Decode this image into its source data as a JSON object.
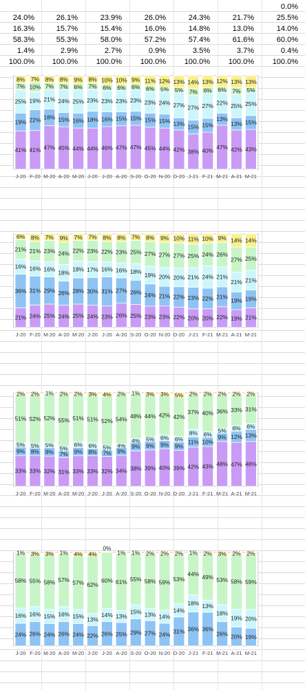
{
  "sheet_table": {
    "rows": [
      [
        "",
        "",
        "",
        "",
        "",
        "",
        "",
        "0.0%"
      ],
      [
        "24.0%",
        "26.1%",
        "23.9%",
        "26.0%",
        "24.3%",
        "21.7%",
        "25.5%"
      ],
      [
        "16.3%",
        "15.7%",
        "15.4%",
        "16.0%",
        "14.8%",
        "13.0%",
        "14.0%"
      ],
      [
        "58.3%",
        "55.3%",
        "58.0%",
        "57.2%",
        "57.4%",
        "61.6%",
        "60.0%"
      ],
      [
        "1.4%",
        "2.9%",
        "2.7%",
        "0.9%",
        "3.5%",
        "3.7%",
        "0.4%"
      ],
      [
        "100.0%",
        "100.0%",
        "100.0%",
        "100.0%",
        "100.0%",
        "100.0%",
        "100.0%"
      ]
    ]
  },
  "colors": {
    "purple": "#c99bf5",
    "blue": "#8ec3f4",
    "cyan": "#cdf6fc",
    "green": "#c8f5c8",
    "yellow": "#faf08c",
    "grid": "#d9d9d9",
    "frame": "#c8c8c8"
  },
  "chart_data": [
    {
      "type": "bar",
      "stacked": "100%",
      "categories": [
        "J-20",
        "F-20",
        "M-20",
        "A-20",
        "M-20",
        "J-20",
        "J-20",
        "A-20",
        "S-20",
        "O-20",
        "N-20",
        "D-20",
        "J-21",
        "F-21",
        "M-21",
        "A-21",
        "M-21"
      ],
      "series": [
        {
          "color": "purple",
          "values": [
            41,
            41,
            47,
            45,
            44,
            44,
            46,
            47,
            47,
            45,
            44,
            42,
            38,
            40,
            47,
            42,
            43
          ]
        },
        {
          "color": "blue",
          "values": [
            19,
            22,
            18,
            15,
            16,
            18,
            16,
            15,
            15,
            15,
            15,
            13,
            15,
            15,
            13,
            13,
            15
          ]
        },
        {
          "color": "cyan",
          "values": [
            25,
            19,
            21,
            24,
            25,
            23,
            23,
            23,
            23,
            23,
            24,
            27,
            27,
            27,
            22,
            25,
            25
          ]
        },
        {
          "color": "green",
          "values": [
            7,
            10,
            7,
            7,
            6,
            7,
            6,
            6,
            6,
            6,
            5,
            5,
            7,
            6,
            6,
            7,
            5
          ]
        },
        {
          "color": "yellow",
          "values": [
            8,
            7,
            8,
            8,
            9,
            8,
            10,
            10,
            9,
            11,
            12,
            13,
            14,
            13,
            12,
            13,
            13
          ]
        }
      ]
    },
    {
      "type": "bar",
      "stacked": "100%",
      "categories": [
        "J-20",
        "F-20",
        "M-20",
        "A-20",
        "M-20",
        "J-20",
        "J-20",
        "A-20",
        "S-20",
        "O-20",
        "N-20",
        "D-20",
        "J-21",
        "F-21",
        "M-21",
        "A-21",
        "M-21"
      ],
      "series": [
        {
          "color": "purple",
          "values": [
            21,
            24,
            25,
            24,
            25,
            24,
            23,
            26,
            25,
            23,
            23,
            22,
            20,
            20,
            22,
            19,
            21
          ]
        },
        {
          "color": "blue",
          "values": [
            36,
            31,
            29,
            26,
            28,
            30,
            31,
            27,
            26,
            24,
            21,
            22,
            23,
            22,
            21,
            19,
            19
          ]
        },
        {
          "color": "cyan",
          "values": [
            16,
            16,
            16,
            18,
            18,
            17,
            16,
            16,
            18,
            19,
            20,
            20,
            21,
            24,
            21,
            21,
            21
          ]
        },
        {
          "color": "green",
          "values": [
            21,
            21,
            23,
            24,
            22,
            23,
            22,
            23,
            25,
            27,
            27,
            27,
            25,
            24,
            26,
            27,
            25
          ]
        },
        {
          "color": "yellow",
          "values": [
            6,
            8,
            7,
            9,
            7,
            7,
            8,
            8,
            7,
            8,
            9,
            10,
            11,
            10,
            9,
            14,
            14
          ]
        }
      ]
    },
    {
      "type": "bar",
      "stacked": "100%",
      "categories": [
        "J-20",
        "F-20",
        "M-20",
        "A-20",
        "M-20",
        "J-20",
        "J-20",
        "A-20",
        "S-20",
        "O-20",
        "N-20",
        "D-20",
        "J-21",
        "F-21",
        "M-21",
        "A-21",
        "M-21"
      ],
      "series": [
        {
          "color": "purple",
          "values": [
            33,
            33,
            32,
            31,
            33,
            33,
            32,
            34,
            38,
            39,
            40,
            39,
            42,
            43,
            48,
            47,
            48
          ]
        },
        {
          "color": "blue",
          "values": [
            9,
            8,
            9,
            7,
            9,
            8,
            7,
            9,
            9,
            9,
            9,
            9,
            11,
            10,
            9,
            12,
            13
          ]
        },
        {
          "color": "cyan",
          "values": [
            5,
            5,
            5,
            5,
            6,
            6,
            5,
            4,
            4,
            5,
            6,
            6,
            8,
            6,
            5,
            6,
            6
          ]
        },
        {
          "color": "green",
          "values": [
            51,
            52,
            52,
            55,
            51,
            51,
            52,
            54,
            48,
            44,
            42,
            42,
            37,
            40,
            36,
            33,
            31
          ]
        },
        {
          "color": "yellow",
          "values": [
            2,
            2,
            1,
            2,
            2,
            3,
            4,
            2,
            1,
            3,
            3,
            5,
            2,
            2,
            2,
            2,
            2
          ]
        }
      ]
    },
    {
      "type": "bar",
      "stacked": "100%",
      "categories": [
        "J-20",
        "F-20",
        "M-20",
        "A-20",
        "M-20",
        "J-20",
        "J-20",
        "A-20",
        "S-20",
        "O-20",
        "N-20",
        "D-20",
        "J-21",
        "F-21",
        "M-21",
        "A-21",
        "M-21"
      ],
      "series": [
        {
          "color": "purple",
          "values": [
            0,
            0,
            0,
            0,
            0,
            0,
            0,
            0,
            0,
            0,
            0,
            0,
            0,
            0,
            0,
            0,
            0
          ]
        },
        {
          "color": "blue",
          "values": [
            24,
            26,
            24,
            26,
            24,
            22,
            26,
            25,
            29,
            27,
            24,
            31,
            36,
            36,
            26,
            20,
            19
          ]
        },
        {
          "color": "cyan",
          "values": [
            16,
            16,
            15,
            16,
            15,
            13,
            14,
            13,
            15,
            13,
            14,
            14,
            18,
            13,
            18,
            19,
            20
          ]
        },
        {
          "color": "green",
          "values": [
            58,
            55,
            58,
            57,
            57,
            62,
            60,
            61,
            55,
            58,
            59,
            53,
            44,
            49,
            53,
            58,
            59
          ]
        },
        {
          "color": "yellow",
          "values": [
            1,
            3,
            3,
            1,
            4,
            4,
            0,
            1,
            1,
            2,
            2,
            2,
            1,
            2,
            3,
            2,
            2
          ]
        }
      ]
    }
  ]
}
